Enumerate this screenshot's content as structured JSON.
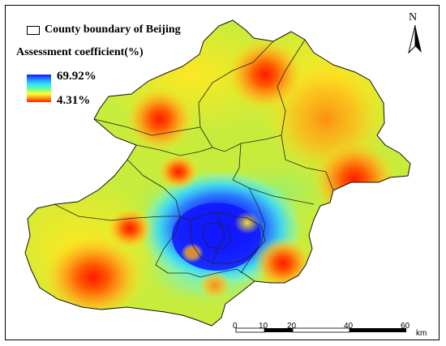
{
  "legend": {
    "boundary_label": "County boundary of Beijing",
    "title": "Assessment coefficient(%)",
    "max_label": "69.92%",
    "min_label": "4.31%",
    "max_value": 69.92,
    "min_value": 4.31,
    "ramp_colors": [
      "#0b1bff",
      "#2ee4ff",
      "#7dff8a",
      "#ffff30",
      "#ff9a1a",
      "#ff1e00"
    ]
  },
  "north_arrow": {
    "label": "N"
  },
  "scale_bar": {
    "ticks": [
      "0",
      "10",
      "20",
      "40",
      "60"
    ],
    "unit": "km"
  },
  "colors": {
    "background_field": "#c8ec3c",
    "high_core": "#0a16ff",
    "low_hotspot": "#ff2200"
  }
}
